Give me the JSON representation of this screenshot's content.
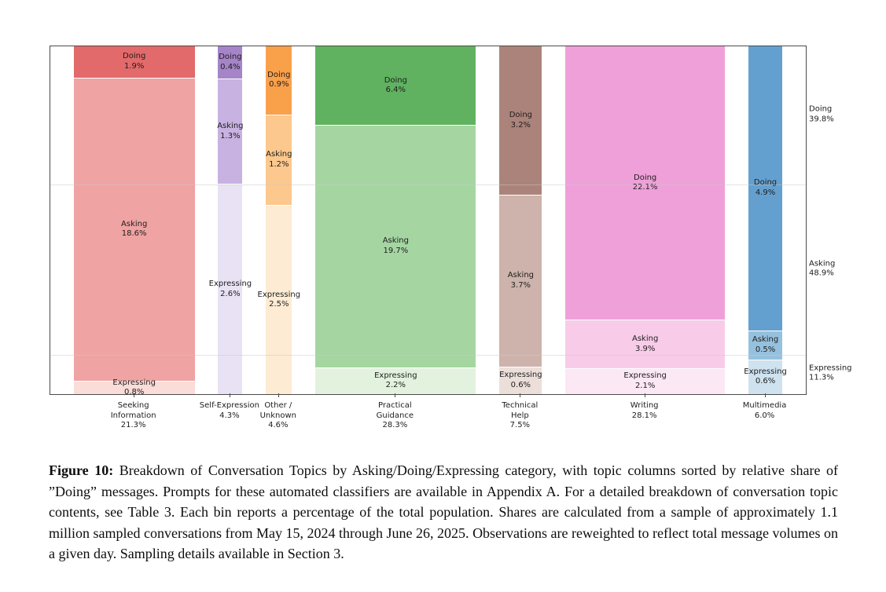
{
  "figure": {
    "caption_label": "Figure 10:",
    "caption_text": " Breakdown of Conversation Topics by Asking/Doing/Expressing category, with topic columns sorted by relative share of ”Doing” messages. Prompts for these automated classifiers are available in Appendix A. For a detailed breakdown of conversation topic contents, see Table 3. Each bin reports a percentage of the total population. Shares are calculated from a sample of approximately 1.1 million sampled conversations from May 15, 2024 through June 26, 2025. Observations are reweighted to reflect total message volumes on a given day. Sampling details available in Section 3."
  },
  "chart_data": {
    "type": "bar",
    "variant": "marimekko-mosaic",
    "title": "",
    "xlabel": "",
    "ylabel": "",
    "grid": true,
    "legend_position": "none",
    "units": "% of total population",
    "categories": [
      {
        "label_lines": [
          "Seeking",
          "Information"
        ],
        "total": 21.3
      },
      {
        "label_lines": [
          "Self-Expression"
        ],
        "total": 4.3
      },
      {
        "label_lines": [
          "Other /",
          "Unknown"
        ],
        "total": 4.6
      },
      {
        "label_lines": [
          "Practical",
          "Guidance"
        ],
        "total": 28.3
      },
      {
        "label_lines": [
          "Technical",
          "Help"
        ],
        "total": 7.5
      },
      {
        "label_lines": [
          "Writing"
        ],
        "total": 28.1
      },
      {
        "label_lines": [
          "Multimedia"
        ],
        "total": 6.0
      }
    ],
    "series": [
      {
        "name": "Doing",
        "values": [
          1.9,
          0.4,
          0.9,
          6.4,
          3.2,
          22.1,
          4.9
        ]
      },
      {
        "name": "Asking",
        "values": [
          18.6,
          1.3,
          1.2,
          19.7,
          3.7,
          3.9,
          0.5
        ]
      },
      {
        "name": "Expressing",
        "values": [
          0.8,
          2.6,
          2.5,
          2.2,
          0.6,
          2.1,
          0.6
        ]
      }
    ],
    "right_axis_totals": [
      {
        "name": "Doing",
        "value": 39.8
      },
      {
        "name": "Asking",
        "value": 48.9
      },
      {
        "name": "Expressing",
        "value": 11.3
      }
    ],
    "colors": [
      {
        "Doing": "#e26a6a",
        "Asking": "#efa3a2",
        "Expressing": "#fadcd9"
      },
      {
        "Doing": "#a584c8",
        "Asking": "#c8b2e1",
        "Expressing": "#e9e2f4"
      },
      {
        "Doing": "#f9a04a",
        "Asking": "#fcc88d",
        "Expressing": "#fdebd3"
      },
      {
        "Doing": "#60b261",
        "Asking": "#a5d6a2",
        "Expressing": "#e2f2de"
      },
      {
        "Doing": "#ab837a",
        "Asking": "#cdb3ab",
        "Expressing": "#ecdfda"
      },
      {
        "Doing": "#efa0d8",
        "Asking": "#f8cce9",
        "Expressing": "#fce8f5"
      },
      {
        "Doing": "#64a0cf",
        "Asking": "#96c1de",
        "Expressing": "#cfe2f0"
      }
    ]
  }
}
